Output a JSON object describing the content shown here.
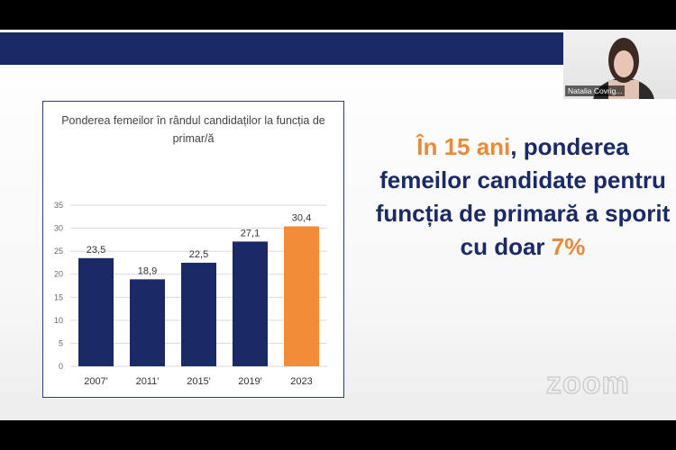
{
  "slide": {
    "headline_part1": "În 15 ani",
    "headline_part2": ", ponderea femeilor candidate pentru funcția de primară a sporit cu doar ",
    "headline_part3": "7%",
    "accent_color": "#e98a3a",
    "brand_color": "#1a2a66"
  },
  "chart_data": {
    "type": "bar",
    "title": "Ponderea femeilor în rândul candidaților la funcția de primar/ă",
    "categories": [
      "2007'",
      "2011'",
      "2015'",
      "2019'",
      "2023"
    ],
    "values": [
      23.5,
      18.9,
      22.5,
      27.1,
      30.4
    ],
    "value_labels": [
      "23,5",
      "18,9",
      "22,5",
      "27,1",
      "30,4"
    ],
    "bar_colors": [
      "#1a2a66",
      "#1a2a66",
      "#1a2a66",
      "#1a2a66",
      "#f28c38"
    ],
    "ylim": [
      0,
      35
    ],
    "yticks": [
      "0",
      "5",
      "10",
      "15",
      "20",
      "25",
      "30",
      "35"
    ],
    "grid": true,
    "xlabel": "",
    "ylabel": ""
  },
  "zoom": {
    "watermark": "zoom",
    "participant_name": "Natalia Covrig..."
  }
}
